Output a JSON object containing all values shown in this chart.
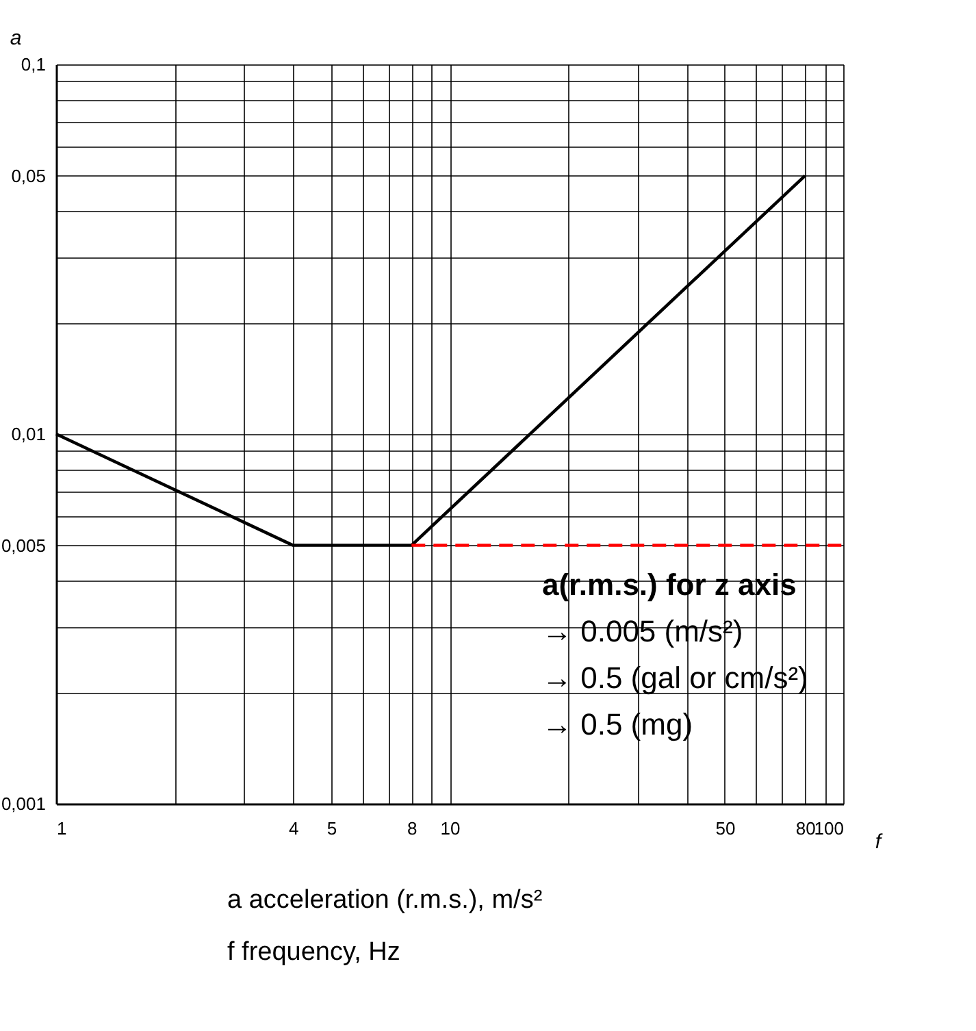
{
  "chart_data": {
    "type": "line",
    "xlabel": "f",
    "ylabel": "a",
    "log": "xy",
    "grid": true,
    "legend": false,
    "series": [
      {
        "color": "#000000",
        "x": [
          1,
          4,
          8,
          80
        ],
        "values": [
          0.01,
          0.005,
          0.005,
          0.05
        ],
        "line_style": "solid"
      },
      {
        "color": "#ff0000",
        "x": [
          8,
          100
        ],
        "values": [
          0.005,
          0.005
        ],
        "line_style": "dashed"
      }
    ],
    "xlim": [
      1,
      100
    ],
    "xticks": [
      1,
      {
        "value": 2,
        "label": null
      },
      {
        "value": 3,
        "label": null
      },
      4,
      5,
      {
        "value": 6,
        "label": null
      },
      {
        "value": 7,
        "label": null
      },
      8,
      {
        "value": 9,
        "label": null
      },
      10,
      {
        "value": 20,
        "label": null
      },
      {
        "value": 30,
        "label": null
      },
      {
        "value": 40,
        "label": null
      },
      50,
      {
        "value": 60,
        "label": null
      },
      {
        "value": 70,
        "label": null
      },
      80,
      {
        "value": 90,
        "label": null
      },
      100
    ],
    "ylim": [
      0.001,
      0.1
    ],
    "yticks": [
      {
        "value": 0.001,
        "label": "0,001"
      },
      {
        "value": 0.002,
        "label": null
      },
      {
        "value": 0.003,
        "label": null
      },
      {
        "value": 0.004,
        "label": null
      },
      {
        "value": 0.005,
        "label": "0,005"
      },
      {
        "value": 0.006,
        "label": null
      },
      {
        "value": 0.007,
        "label": null
      },
      {
        "value": 0.008,
        "label": null
      },
      {
        "value": 0.009,
        "label": null
      },
      {
        "value": 0.01,
        "label": "0,01"
      },
      {
        "value": 0.02,
        "label": null
      },
      {
        "value": 0.03,
        "label": null
      },
      {
        "value": 0.04,
        "label": null
      },
      {
        "value": 0.05,
        "label": "0,05"
      },
      {
        "value": 0.06,
        "label": null
      },
      {
        "value": 0.07,
        "label": null
      },
      {
        "value": 0.08,
        "label": null
      },
      {
        "value": 0.09,
        "label": null
      },
      {
        "value": 0.1,
        "label": "0,1"
      }
    ],
    "annotations": [
      "a(r.m.s.) for z axis",
      "→ 0.005 (m/s²)",
      "→ 0.5   (gal or cm/s²)",
      "→ 0.5   (mg)",
      "a     acceleration (r.m.s.), m/s²",
      "f     frequency, Hz"
    ]
  }
}
